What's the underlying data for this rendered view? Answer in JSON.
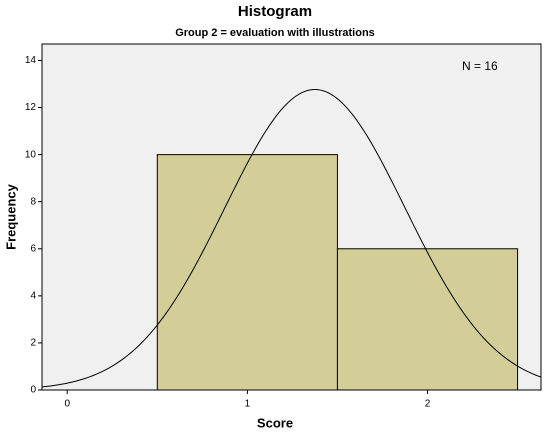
{
  "chart_data": {
    "type": "histogram",
    "title": "Histogram",
    "subtitle": "Group 2 = evaluation with illustrations",
    "x_label": "Score",
    "y_label": "Frequency",
    "annotation": "N = 16",
    "bins": [
      0.5,
      1.5,
      2.5
    ],
    "values": [
      10,
      6
    ],
    "color": "#d3ce97",
    "xlim": [
      -0.14,
      2.63
    ],
    "xticks": [
      0,
      1,
      2
    ],
    "ylim": [
      0,
      14.7
    ],
    "yticks": [
      0,
      2,
      4,
      6,
      8,
      10,
      12,
      14
    ],
    "normal_curve": true
  }
}
